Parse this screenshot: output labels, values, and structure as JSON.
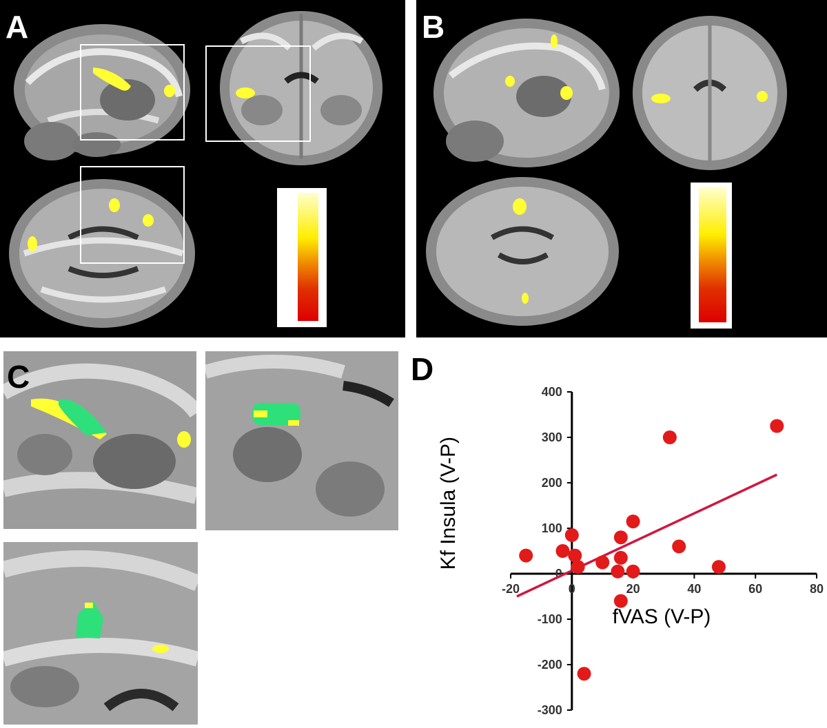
{
  "panels": {
    "a": {
      "label": "A"
    },
    "b": {
      "label": "B"
    },
    "c": {
      "label": "C"
    },
    "d": {
      "label": "D"
    }
  },
  "colors": {
    "activation_yellow": "#ffff33",
    "activation_green": "#2ee07a",
    "colorbar_top": "#ffffcc",
    "colorbar_bottom": "#dd0000",
    "point_color": "#e21a1a",
    "fit_line": "#d1163f"
  },
  "chart_data": {
    "type": "scatter",
    "xlabel": "fVAS (V-P)",
    "ylabel": "Kf Insula (V-P)",
    "xlim": [
      -20,
      80
    ],
    "ylim": [
      -300,
      400
    ],
    "xticks": [
      -20,
      0,
      20,
      40,
      60,
      80
    ],
    "yticks": [
      -300,
      -200,
      -100,
      0,
      100,
      200,
      300,
      400
    ],
    "xtick_labels": [
      "-20",
      "0",
      "20",
      "40",
      "60",
      "80"
    ],
    "ytick_labels": [
      "-300",
      "-200",
      "-100",
      "0",
      "100",
      "200",
      "300",
      "400"
    ],
    "grid": false,
    "points": [
      {
        "x": -15,
        "y": 40
      },
      {
        "x": -3,
        "y": 50
      },
      {
        "x": 0,
        "y": 85
      },
      {
        "x": 1,
        "y": 40
      },
      {
        "x": 2,
        "y": 15
      },
      {
        "x": 4,
        "y": -220
      },
      {
        "x": 10,
        "y": 25
      },
      {
        "x": 15,
        "y": 5
      },
      {
        "x": 16,
        "y": 80
      },
      {
        "x": 16,
        "y": 35
      },
      {
        "x": 16,
        "y": -60
      },
      {
        "x": 20,
        "y": 115
      },
      {
        "x": 20,
        "y": 5
      },
      {
        "x": 32,
        "y": 300
      },
      {
        "x": 35,
        "y": 60
      },
      {
        "x": 48,
        "y": 15
      },
      {
        "x": 67,
        "y": 325
      }
    ],
    "trendline": {
      "x": [
        -18,
        67
      ],
      "y": [
        -50,
        218
      ]
    }
  }
}
